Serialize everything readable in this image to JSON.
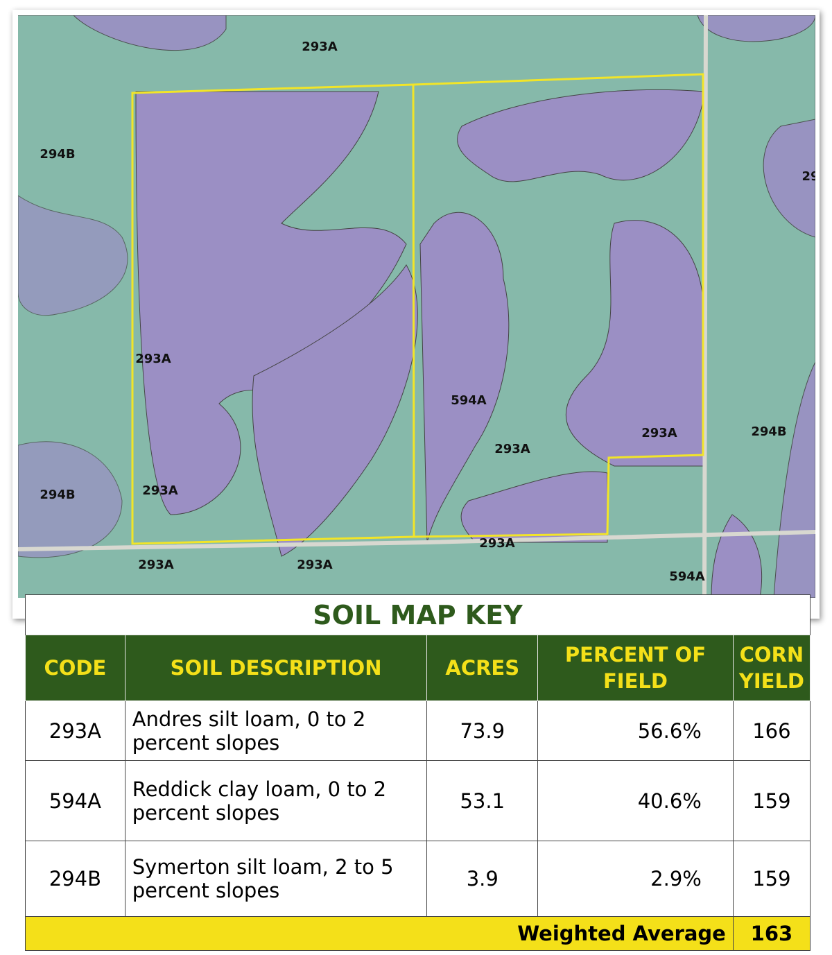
{
  "map": {
    "labels": [
      "293A",
      "294B",
      "29",
      "293A",
      "594A",
      "293A",
      "293A",
      "294B",
      "294B",
      "293A",
      "293A",
      "293A",
      "293A",
      "594A"
    ]
  },
  "table": {
    "title": "SOIL MAP KEY",
    "header": [
      "CODE",
      "SOIL DESCRIPTION",
      "ACRES",
      "PERCENT OF FIELD",
      "CORN YIELD"
    ],
    "rows": [
      [
        "293A",
        "Andres silt loam, 0 to 2 percent slopes",
        "73.9",
        "56.6%",
        "166"
      ],
      [
        "594A",
        "Reddick clay loam, 0 to 2 percent slopes",
        "53.1",
        "40.6%",
        "159"
      ],
      [
        "294B",
        "Symerton silt loam, 2 to 5 percent slopes",
        "3.9",
        "2.9%",
        "159"
      ]
    ],
    "footer": {
      "label": "Weighted Average",
      "value": "163"
    }
  }
}
